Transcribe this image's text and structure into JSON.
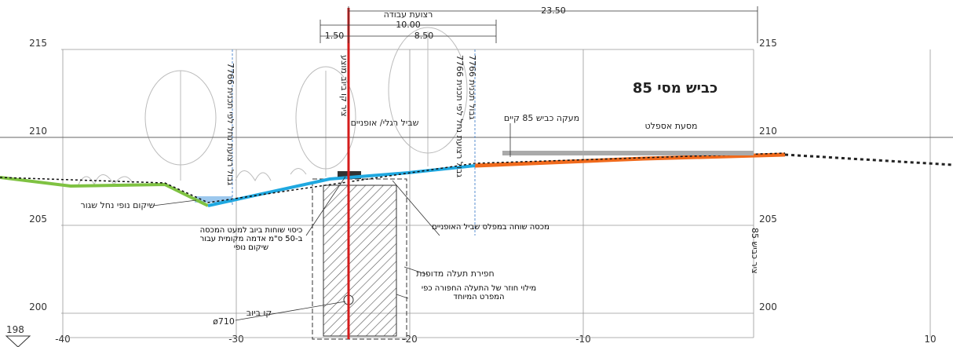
{
  "header": {
    "work_strip": "רצועת עבודה",
    "road_title": "כביש מסי 85"
  },
  "dimensions": {
    "total": "23.50",
    "strip": "10.00",
    "left": "1.50",
    "right": "8.50"
  },
  "axes": {
    "stations": [
      -40,
      -30,
      -20,
      -10,
      10
    ],
    "elevations": [
      215,
      210,
      205,
      200
    ],
    "datum": 198
  },
  "labels": {
    "guardrail": "מעקה כביש 85 קיים",
    "asphalt": "מסעת אספלט",
    "path": "שביל רגלי/ אופניים",
    "landscape": "שיקום נופי נחל שגור",
    "cover": "כיסוי שוחות ביוב למעט המכסה ב-50 ס\"מ אדמה מקומית עבור שיקום נופי",
    "manhole": "מכסה שוחה במפלס שביל האופניים",
    "trench": "חפירת תעלה מדופנת",
    "backfill": "מילוי חוזר של התעלה החפורה כפי המפרט המיוחד",
    "sewer": "קו ביוב",
    "diameter": "ø710"
  },
  "vertical_labels": {
    "stream_limit_1": "גבול רצועת נחל לפי תכנית 7766",
    "sewer_axis": "ציר קו ביוב מוצע",
    "stream_limit_2": "גבול רצועת נחל לפי תכנית 7766",
    "plan_limit": "גבול תכנית 7766",
    "road_axis": "ציר כביש 85"
  }
}
